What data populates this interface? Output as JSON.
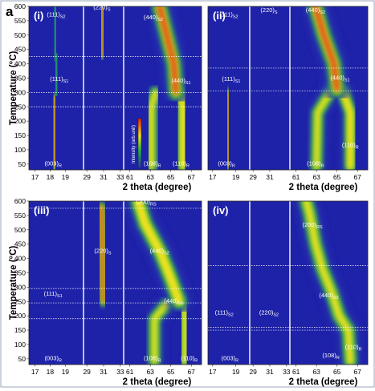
{
  "figure_letter": "a",
  "colors": {
    "background": "#1e22a8",
    "low": "#2a2fb5",
    "mid": "#1fb34a",
    "high": "#f2e21a",
    "peak": "#e31e12",
    "separator": "#ffffff"
  },
  "colorbar_label": "Intensity (arb.unit)",
  "chart_data": [
    {
      "type": "heatmap",
      "panel_label": "(i)",
      "xlabel": "2 theta (degree)",
      "ylabel": "Temperature (°C)",
      "ylim": [
        30,
        600
      ],
      "yticks": [
        "50",
        "100",
        "150",
        "200",
        "250",
        "300",
        "350",
        "400",
        "450",
        "500",
        "550",
        "600"
      ],
      "segments": [
        {
          "ticks": [
            "17",
            "18",
            "19"
          ],
          "xlim": [
            16.6,
            20.2
          ]
        },
        {
          "ticks": [
            "29",
            "31",
            "33"
          ],
          "xlim": [
            28.6,
            33.4
          ]
        },
        {
          "ticks": [
            "61",
            "63",
            "65",
            "67"
          ],
          "xlim": [
            60.4,
            68.0
          ]
        }
      ],
      "phase_boundaries_c": [
        250,
        300,
        425
      ],
      "peak_labels": [
        {
          "text": "(003)",
          "sub": "R",
          "x": 18.2,
          "y": 45
        },
        {
          "text": "(111)",
          "sub": "S1",
          "x": 18.6,
          "y": 340
        },
        {
          "text": "(111)",
          "sub": "S2",
          "x": 18.4,
          "y": 565
        },
        {
          "text": "(220)",
          "sub": "S",
          "x": 30.8,
          "y": 590
        },
        {
          "text": "(440)",
          "sub": "S2",
          "x": 63.3,
          "y": 555
        },
        {
          "text": "(440)",
          "sub": "S1",
          "x": 66.0,
          "y": 335
        },
        {
          "text": "(108)",
          "sub": "R",
          "x": 63.2,
          "y": 45
        },
        {
          "text": "(110)",
          "sub": "R",
          "x": 66.0,
          "y": 45
        }
      ],
      "intensity_traces": [
        {
          "points": [
            [
              18.25,
              40
            ],
            [
              18.25,
              250
            ],
            [
              18.3,
              280
            ]
          ],
          "peak": 1.0,
          "width": 0.35
        },
        {
          "points": [
            [
              18.4,
              300
            ],
            [
              18.45,
              425
            ]
          ],
          "peak": 0.35,
          "width": 0.45
        },
        {
          "points": [
            [
              18.35,
              425
            ],
            [
              18.3,
              600
            ]
          ],
          "peak": 0.3,
          "width": 0.45
        },
        {
          "points": [
            [
              30.8,
              430
            ],
            [
              30.9,
              600
            ]
          ],
          "peak": 0.95,
          "width": 0.6
        },
        {
          "points": [
            [
              63.1,
              40
            ],
            [
              63.1,
              250
            ],
            [
              63.5,
              300
            ]
          ],
          "peak": 0.55,
          "width": 0.7
        },
        {
          "points": [
            [
              66.2,
              40
            ],
            [
              66.2,
              250
            ],
            [
              65.9,
              300
            ]
          ],
          "peak": 0.8,
          "width": 0.7
        },
        {
          "points": [
            [
              65.5,
              300
            ],
            [
              65.3,
              400
            ],
            [
              64.6,
              500
            ],
            [
              63.9,
              600
            ]
          ],
          "peak": 1.0,
          "width": 0.9
        }
      ]
    },
    {
      "type": "heatmap",
      "panel_label": "(ii)",
      "xlabel": "2 theta (degree)",
      "ylabel": "",
      "ylim": [
        30,
        600
      ],
      "yticks": [],
      "segments": [
        {
          "ticks": [
            "17",
            "19"
          ],
          "xlim": [
            16.6,
            20.2
          ]
        },
        {
          "ticks": [
            "29",
            "31"
          ],
          "xlim": [
            28.6,
            33.4
          ]
        },
        {
          "ticks": [
            "61",
            "63",
            "65",
            "67"
          ],
          "xlim": [
            60.4,
            68.0
          ]
        }
      ],
      "phase_boundaries_c": [
        305,
        385
      ],
      "peak_labels": [
        {
          "text": "(003)",
          "sub": "R",
          "x": 18.2,
          "y": 45
        },
        {
          "text": "(111)",
          "sub": "S1",
          "x": 18.6,
          "y": 340
        },
        {
          "text": "(111)",
          "sub": "S2",
          "x": 18.4,
          "y": 565
        },
        {
          "text": "(220)",
          "sub": "S",
          "x": 30.9,
          "y": 580
        },
        {
          "text": "(440)",
          "sub": "S2",
          "x": 62.9,
          "y": 580
        },
        {
          "text": "(440)",
          "sub": "S1",
          "x": 65.3,
          "y": 345
        },
        {
          "text": "(108)",
          "sub": "R",
          "x": 62.9,
          "y": 45
        },
        {
          "text": "(110)",
          "sub": "R",
          "x": 66.3,
          "y": 110
        }
      ],
      "intensity_traces": [
        {
          "points": [
            [
              18.3,
              40
            ],
            [
              18.3,
              270
            ],
            [
              18.35,
              300
            ]
          ],
          "peak": 1.0,
          "width": 0.35
        },
        {
          "points": [
            [
              18.4,
              310
            ],
            [
              18.4,
              390
            ]
          ],
          "peak": 0.3,
          "width": 0.45
        },
        {
          "points": [
            [
              30.9,
              390
            ],
            [
              30.9,
              600
            ]
          ],
          "peak": 1.0,
          "width": 0.6
        },
        {
          "points": [
            [
              63.0,
              40
            ],
            [
              63.1,
              230
            ],
            [
              64.5,
              310
            ]
          ],
          "peak": 0.65,
          "width": 0.7
        },
        {
          "points": [
            [
              66.3,
              40
            ],
            [
              66.3,
              230
            ],
            [
              65.5,
              310
            ]
          ],
          "peak": 0.85,
          "width": 0.7
        },
        {
          "points": [
            [
              65.0,
              310
            ],
            [
              64.7,
              400
            ],
            [
              63.7,
              500
            ],
            [
              62.9,
              600
            ]
          ],
          "peak": 1.0,
          "width": 0.9
        }
      ]
    },
    {
      "type": "heatmap",
      "panel_label": "(iii)",
      "xlabel": "2 theta (degree)",
      "ylabel": "Temperature (°C)",
      "ylim": [
        30,
        600
      ],
      "yticks": [
        "50",
        "100",
        "150",
        "200",
        "250",
        "300",
        "350",
        "400",
        "450",
        "500",
        "550",
        "600"
      ],
      "segments": [
        {
          "ticks": [
            "17",
            "18",
            "19"
          ],
          "xlim": [
            16.6,
            20.2
          ]
        },
        {
          "ticks": [
            "29",
            "31",
            "33"
          ],
          "xlim": [
            28.6,
            33.4
          ]
        },
        {
          "ticks": [
            "61",
            "63",
            "65",
            "67"
          ],
          "xlim": [
            60.4,
            68.0
          ]
        }
      ],
      "phase_boundaries_c": [
        190,
        245,
        295,
        575
      ],
      "peak_labels": [
        {
          "text": "(003)",
          "sub": "R",
          "x": 18.2,
          "y": 45
        },
        {
          "text": "(111)",
          "sub": "S1",
          "x": 18.2,
          "y": 270
        },
        {
          "text": "(220)",
          "sub": "S",
          "x": 30.9,
          "y": 420
        },
        {
          "text": "(200)",
          "sub": "RS",
          "x": 62.6,
          "y": 590
        },
        {
          "text": "(440)",
          "sub": "S2",
          "x": 63.9,
          "y": 420
        },
        {
          "text": "(440)",
          "sub": "S1",
          "x": 65.3,
          "y": 245
        },
        {
          "text": "(108)",
          "sub": "R",
          "x": 63.2,
          "y": 45
        },
        {
          "text": "(110)",
          "sub": "R",
          "x": 66.8,
          "y": 45
        }
      ],
      "intensity_traces": [
        {
          "points": [
            [
              18.2,
              40
            ],
            [
              18.2,
              195
            ]
          ],
          "peak": 1.0,
          "width": 0.35
        },
        {
          "points": [
            [
              18.3,
              245
            ],
            [
              18.3,
              295
            ]
          ],
          "peak": 0.3,
          "width": 0.4
        },
        {
          "points": [
            [
              31.0,
              250
            ],
            [
              30.9,
              360
            ],
            [
              30.8,
              500
            ],
            [
              30.7,
              580
            ]
          ],
          "peak": 1.0,
          "width": 0.7
        },
        {
          "points": [
            [
              63.4,
              40
            ],
            [
              63.4,
              190
            ],
            [
              64.7,
              245
            ]
          ],
          "peak": 0.6,
          "width": 0.7
        },
        {
          "points": [
            [
              66.4,
              40
            ],
            [
              66.4,
              190
            ],
            [
              66.2,
              250
            ]
          ],
          "peak": 0.75,
          "width": 0.7
        },
        {
          "points": [
            [
              65.8,
              250
            ],
            [
              65.0,
              330
            ],
            [
              64.0,
              420
            ],
            [
              62.5,
              520
            ],
            [
              61.8,
              600
            ]
          ],
          "peak": 0.85,
          "width": 0.9
        }
      ]
    },
    {
      "type": "heatmap",
      "panel_label": "(iv)",
      "xlabel": "2 theta (degree)",
      "ylabel": "",
      "ylim": [
        30,
        600
      ],
      "yticks": [],
      "segments": [
        {
          "ticks": [
            "17",
            "19"
          ],
          "xlim": [
            16.6,
            20.2
          ]
        },
        {
          "ticks": [
            "29",
            "31",
            "33"
          ],
          "xlim": [
            28.6,
            33.4
          ]
        },
        {
          "ticks": [
            "61",
            "63",
            "65",
            "67"
          ],
          "xlim": [
            60.4,
            68.0
          ]
        }
      ],
      "phase_boundaries_c": [
        150,
        160,
        375
      ],
      "peak_labels": [
        {
          "text": "(003)",
          "sub": "R",
          "x": 18.5,
          "y": 45
        },
        {
          "text": "(111)",
          "sub": "S2",
          "x": 18.0,
          "y": 205
        },
        {
          "text": "(220)",
          "sub": "S2",
          "x": 30.9,
          "y": 205
        },
        {
          "text": "(200)",
          "sub": "RS",
          "x": 62.6,
          "y": 510
        },
        {
          "text": "(440)",
          "sub": "S2",
          "x": 64.2,
          "y": 265
        },
        {
          "text": "(108)",
          "sub": "R",
          "x": 64.4,
          "y": 55
        },
        {
          "text": "(110)",
          "sub": "R",
          "x": 66.6,
          "y": 85
        }
      ],
      "intensity_traces": [
        {
          "points": [
            [
              18.9,
              40
            ],
            [
              18.9,
              150
            ]
          ],
          "peak": 1.0,
          "width": 0.4
        },
        {
          "points": [
            [
              30.9,
              160
            ],
            [
              30.9,
              250
            ],
            [
              30.9,
              300
            ]
          ],
          "peak": 1.0,
          "width": 1.2
        },
        {
          "points": [
            [
              30.9,
              300
            ],
            [
              30.9,
              420
            ]
          ],
          "peak": 0.2,
          "width": 1.5
        },
        {
          "points": [
            [
              66.3,
              40
            ],
            [
              66.1,
              150
            ],
            [
              65.2,
              200
            ],
            [
              64.5,
              280
            ],
            [
              63.6,
              360
            ],
            [
              62.9,
              450
            ],
            [
              62.3,
              560
            ],
            [
              62.0,
              600
            ]
          ],
          "peak": 0.6,
          "width": 0.8
        }
      ]
    }
  ]
}
